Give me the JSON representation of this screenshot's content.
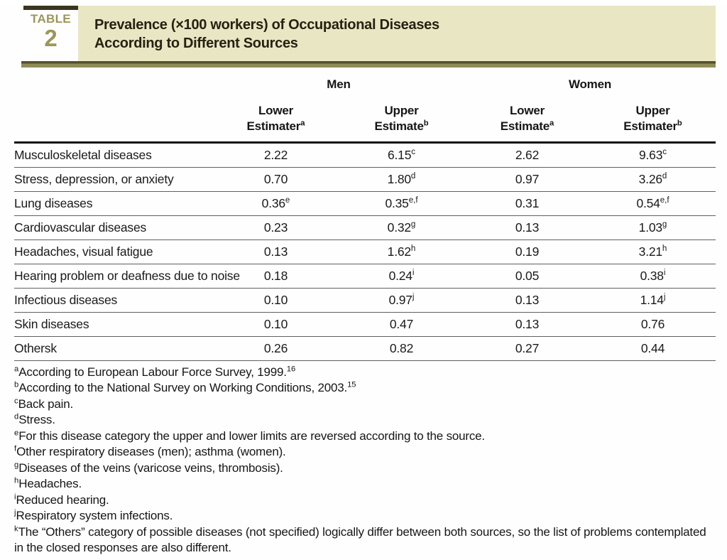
{
  "header": {
    "table_label": "TABLE",
    "table_number": "2",
    "title_line1": "Prevalence (×100 workers) of Occupational Diseases",
    "title_line2": "According to Different Sources"
  },
  "table": {
    "group_headers": {
      "men": "Men",
      "women": "Women"
    },
    "columns": [
      {
        "line1": "Lower",
        "line2": "Estimater",
        "sup": "a"
      },
      {
        "line1": "Upper",
        "line2": "Estimate",
        "sup": "b"
      },
      {
        "line1": "Lower",
        "line2": "Estimate",
        "sup": "a"
      },
      {
        "line1": "Upper",
        "line2": "Estimater",
        "sup": "b"
      }
    ],
    "rows": [
      {
        "label": "Musculoskeletal diseases",
        "cells": [
          {
            "v": "2.22",
            "s": ""
          },
          {
            "v": "6.15",
            "s": "c"
          },
          {
            "v": "2.62",
            "s": ""
          },
          {
            "v": "9.63",
            "s": "c"
          }
        ]
      },
      {
        "label": "Stress, depression, or anxiety",
        "cells": [
          {
            "v": "0.70",
            "s": ""
          },
          {
            "v": "1.80",
            "s": "d"
          },
          {
            "v": "0.97",
            "s": ""
          },
          {
            "v": "3.26",
            "s": "d"
          }
        ]
      },
      {
        "label": "Lung diseases",
        "cells": [
          {
            "v": "0.36",
            "s": "e"
          },
          {
            "v": "0.35",
            "s": "e,f"
          },
          {
            "v": "0.31",
            "s": ""
          },
          {
            "v": "0.54",
            "s": "e,f"
          }
        ]
      },
      {
        "label": "Cardiovascular diseases",
        "cells": [
          {
            "v": "0.23",
            "s": ""
          },
          {
            "v": "0.32",
            "s": "g"
          },
          {
            "v": "0.13",
            "s": ""
          },
          {
            "v": "1.03",
            "s": "g"
          }
        ]
      },
      {
        "label": "Headaches, visual fatigue",
        "cells": [
          {
            "v": "0.13",
            "s": ""
          },
          {
            "v": "1.62",
            "s": "h"
          },
          {
            "v": "0.19",
            "s": ""
          },
          {
            "v": "3.21",
            "s": "h"
          }
        ]
      },
      {
        "label": "Hearing problem or deafness due to noise",
        "cells": [
          {
            "v": "0.18",
            "s": ""
          },
          {
            "v": "0.24",
            "s": "i"
          },
          {
            "v": "0.05",
            "s": ""
          },
          {
            "v": "0.38",
            "s": "i"
          }
        ]
      },
      {
        "label": "Infectious diseases",
        "cells": [
          {
            "v": "0.10",
            "s": ""
          },
          {
            "v": "0.97",
            "s": "j"
          },
          {
            "v": "0.13",
            "s": ""
          },
          {
            "v": "1.14",
            "s": "j"
          }
        ]
      },
      {
        "label": "Skin diseases",
        "cells": [
          {
            "v": "0.10",
            "s": ""
          },
          {
            "v": "0.47",
            "s": ""
          },
          {
            "v": "0.13",
            "s": ""
          },
          {
            "v": "0.76",
            "s": ""
          }
        ]
      },
      {
        "label": "Othersk",
        "cells": [
          {
            "v": "0.26",
            "s": ""
          },
          {
            "v": "0.82",
            "s": ""
          },
          {
            "v": "0.27",
            "s": ""
          },
          {
            "v": "0.44",
            "s": ""
          }
        ]
      }
    ]
  },
  "footnotes": [
    {
      "sup": "a",
      "text": "According to European Labour Force Survey, 1999.",
      "ref": "16"
    },
    {
      "sup": "b",
      "text": "According to the National Survey on Working Conditions, 2003.",
      "ref": "15"
    },
    {
      "sup": "c",
      "text": "Back pain.",
      "ref": ""
    },
    {
      "sup": "d",
      "text": "Stress.",
      "ref": ""
    },
    {
      "sup": "e",
      "text": "For this disease category the upper and lower limits are reversed according to the source.",
      "ref": ""
    },
    {
      "sup": "f",
      "text": "Other respiratory diseases (men); asthma (women).",
      "ref": ""
    },
    {
      "sup": "g",
      "text": "Diseases of the veins (varicose veins, thrombosis).",
      "ref": ""
    },
    {
      "sup": "h",
      "text": "Headaches.",
      "ref": ""
    },
    {
      "sup": "i",
      "text": "Reduced hearing.",
      "ref": ""
    },
    {
      "sup": "j",
      "text": "Respiratory system infections.",
      "ref": ""
    },
    {
      "sup": "k",
      "text": "The “Others” category of possible diseases (not specified) logically differ between both sources, so the list of problems contemplated in the closed responses are also different.",
      "ref": ""
    }
  ],
  "colors": {
    "olive_label": "#9c9659",
    "dark_bar": "#39351e",
    "title_box_bg": "#e9e6c3",
    "title_text": "#262112",
    "rule_dark": "#55512d",
    "rule_light": "#908c58"
  }
}
